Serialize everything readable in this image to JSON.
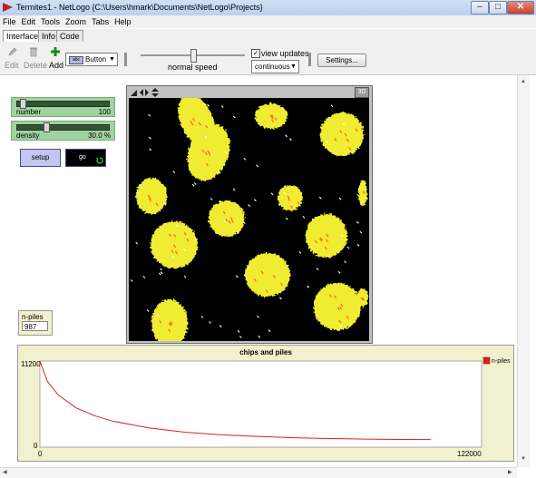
{
  "window": {
    "title": "Termites1 - NetLogo {C:\\Users\\hmark\\Documents\\NetLogo\\Projects}"
  },
  "menu": [
    "File",
    "Edit",
    "Tools",
    "Zoom",
    "Tabs",
    "Help"
  ],
  "tabs": [
    "Interface",
    "Info",
    "Code"
  ],
  "toolbar": {
    "edit": "Edit",
    "delete": "Delete",
    "add": "Add",
    "widget_type": "Button",
    "speed_label": "normal speed",
    "speed_value": 0.5,
    "view_updates_label": "view updates",
    "view_updates_checked": true,
    "update_mode": "continuous",
    "settings": "Settings..."
  },
  "widgets": {
    "number": {
      "label": "number",
      "value": "100",
      "fraction": 0.04
    },
    "density": {
      "label": "density",
      "value": "30.0 %",
      "fraction": 0.3
    },
    "setup": "setup",
    "go": "go",
    "monitor": {
      "label": "n-piles",
      "value": "987"
    }
  },
  "world": {
    "three_d_label": "3D"
  },
  "plot": {
    "title": "chips and piles",
    "legend": "n-piles",
    "ymax_label": "11200",
    "ymin_label": "0",
    "xmin_label": "0",
    "xmax_label": "122000"
  },
  "chart_data": {
    "type": "line",
    "title": "chips and piles",
    "xlabel": "",
    "ylabel": "",
    "xlim": [
      0,
      122000
    ],
    "ylim": [
      0,
      11200
    ],
    "series": [
      {
        "name": "n-piles",
        "color": "#e02020",
        "x": [
          0,
          2000,
          5000,
          10000,
          15000,
          20000,
          30000,
          40000,
          50000,
          60000,
          70000,
          80000,
          90000,
          100000,
          108000
        ],
        "y": [
          11200,
          8600,
          6800,
          5100,
          4100,
          3400,
          2500,
          1950,
          1600,
          1400,
          1230,
          1120,
          1050,
          1000,
          987
        ]
      }
    ]
  },
  "colors": {
    "chip": "#f0ec30",
    "termite_white": "#ffffff",
    "termite_orange": "#ff6a1a",
    "background": "#000000"
  }
}
